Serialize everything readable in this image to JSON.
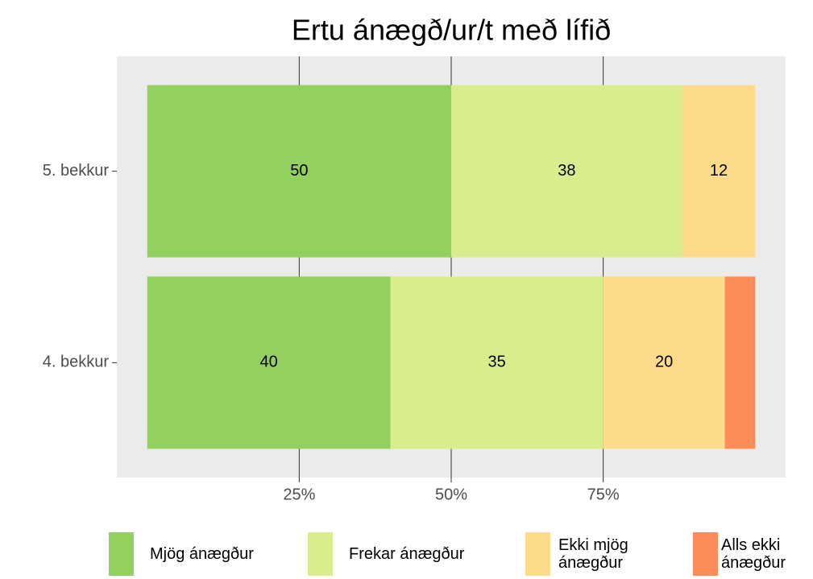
{
  "chart_data": {
    "type": "stacked_bar_horizontal",
    "title": "Ertu ánægð/ur/t með lífið",
    "categories": [
      "5. bekkur",
      "4. bekkur"
    ],
    "series": [
      {
        "name": "Mjög ánægður",
        "color": "#92d060",
        "values": [
          50,
          40
        ],
        "value_labels": [
          50,
          40
        ]
      },
      {
        "name": "Frekar ánægður",
        "color": "#d9ed8c",
        "values": [
          38,
          35
        ],
        "value_labels": [
          38,
          35
        ]
      },
      {
        "name": "Ekki mjög ánægður",
        "color": "#fedb8a",
        "values": [
          12,
          20
        ],
        "value_labels": [
          12,
          20
        ]
      },
      {
        "name": "Alls ekki ánægður",
        "color": "#fc8d59",
        "values": [
          0,
          5
        ],
        "value_labels": [
          null,
          null
        ]
      }
    ],
    "xlim": [
      -5,
      105
    ],
    "xticks": [
      {
        "value": 25,
        "label": "25%"
      },
      {
        "value": 50,
        "label": "50%"
      },
      {
        "value": 75,
        "label": "75%"
      }
    ],
    "grid": true
  }
}
